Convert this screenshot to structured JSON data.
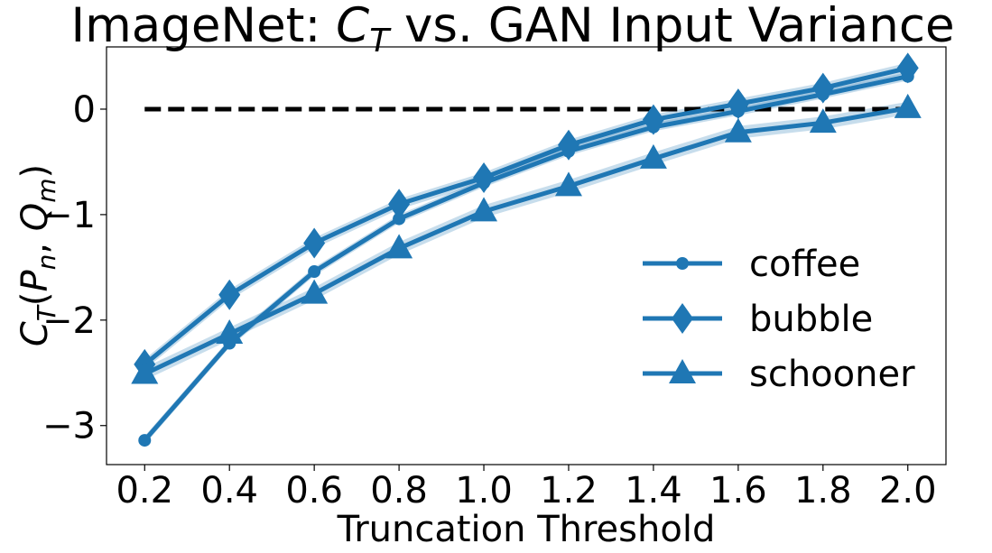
{
  "chart_data": {
    "type": "line",
    "title": "ImageNet: C_T vs. GAN Input Variance",
    "title_parts": {
      "prefix": "ImageNet: ",
      "symbol": "C",
      "subscript": "T",
      "suffix": " vs. GAN Input Variance"
    },
    "xlabel": "Truncation Threshold",
    "ylabel": "C_T(P_n, Q_m)",
    "ylabel_parts": {
      "symbol": "C",
      "subscript": "T",
      "open": "(",
      "p": "P",
      "p_sub": "n",
      "comma": ", ",
      "q": "Q",
      "q_sub": "m",
      "close": ")"
    },
    "x": [
      0.2,
      0.4,
      0.6,
      0.8,
      1.0,
      1.2,
      1.4,
      1.6,
      1.8,
      2.0
    ],
    "xticks": [
      "0.2",
      "0.4",
      "0.6",
      "0.8",
      "1.0",
      "1.2",
      "1.4",
      "1.6",
      "1.8",
      "2.0"
    ],
    "yticks": [
      0,
      -1,
      -2,
      -3
    ],
    "ytick_labels": [
      "0",
      "−1",
      "−2",
      "−3"
    ],
    "xlim": [
      0.11,
      2.09
    ],
    "ylim": [
      -3.37,
      0.59
    ],
    "grid": false,
    "legend_position": "center-right",
    "reference_line": {
      "y": 0,
      "style": "dashed",
      "color": "#000000"
    },
    "series": [
      {
        "name": "coffee",
        "marker": "circle",
        "color": "#1f77b4",
        "values": [
          -3.14,
          -2.22,
          -1.54,
          -1.04,
          -0.7,
          -0.4,
          -0.17,
          -0.02,
          0.14,
          0.31
        ],
        "band": 0.04
      },
      {
        "name": "bubble",
        "marker": "thin-diamond",
        "color": "#1f77b4",
        "values": [
          -2.42,
          -1.76,
          -1.27,
          -0.9,
          -0.65,
          -0.34,
          -0.1,
          0.05,
          0.2,
          0.39
        ],
        "band": 0.05
      },
      {
        "name": "schooner",
        "marker": "triangle-up",
        "color": "#1f77b4",
        "values": [
          -2.51,
          -2.13,
          -1.75,
          -1.32,
          -0.97,
          -0.73,
          -0.47,
          -0.22,
          -0.13,
          0.01
        ],
        "band": 0.06
      }
    ]
  }
}
